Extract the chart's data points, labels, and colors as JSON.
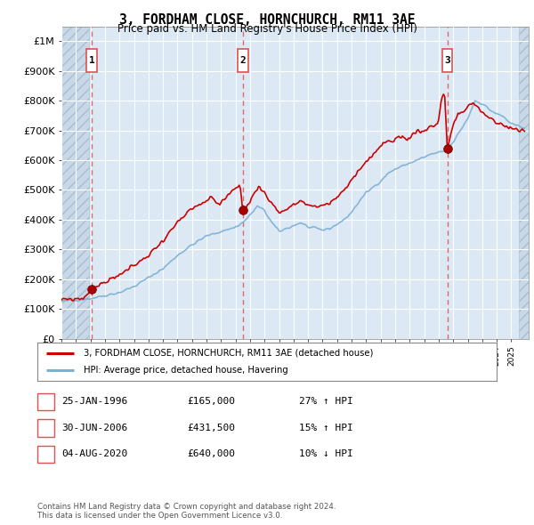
{
  "title": "3, FORDHAM CLOSE, HORNCHURCH, RM11 3AE",
  "subtitle": "Price paid vs. HM Land Registry's House Price Index (HPI)",
  "ylabel_ticks": [
    "£0",
    "£100K",
    "£200K",
    "£300K",
    "£400K",
    "£500K",
    "£600K",
    "£700K",
    "£800K",
    "£900K",
    "£1M"
  ],
  "ytick_values": [
    0,
    100000,
    200000,
    300000,
    400000,
    500000,
    600000,
    700000,
    800000,
    900000,
    1000000
  ],
  "ylim": [
    0,
    1050000
  ],
  "xlim_start": 1994.0,
  "xlim_end": 2026.2,
  "background_color": "#dce9f5",
  "grid_color": "#ffffff",
  "purchase_dates": [
    1996.08,
    2006.5,
    2020.59
  ],
  "purchase_prices": [
    165000,
    431500,
    640000
  ],
  "purchase_labels": [
    "1",
    "2",
    "3"
  ],
  "legend_label_red": "3, FORDHAM CLOSE, HORNCHURCH, RM11 3AE (detached house)",
  "legend_label_blue": "HPI: Average price, detached house, Havering",
  "table_data": [
    {
      "num": "1",
      "date": "25-JAN-1996",
      "price": "£165,000",
      "change": "27% ↑ HPI"
    },
    {
      "num": "2",
      "date": "30-JUN-2006",
      "price": "£431,500",
      "change": "15% ↑ HPI"
    },
    {
      "num": "3",
      "date": "04-AUG-2020",
      "price": "£640,000",
      "change": "10% ↓ HPI"
    }
  ],
  "footer_text": "Contains HM Land Registry data © Crown copyright and database right 2024.\nThis data is licensed under the Open Government Licence v3.0.",
  "red_color": "#cc0000",
  "blue_color": "#7ab0d4",
  "dashed_red": "#e05050"
}
